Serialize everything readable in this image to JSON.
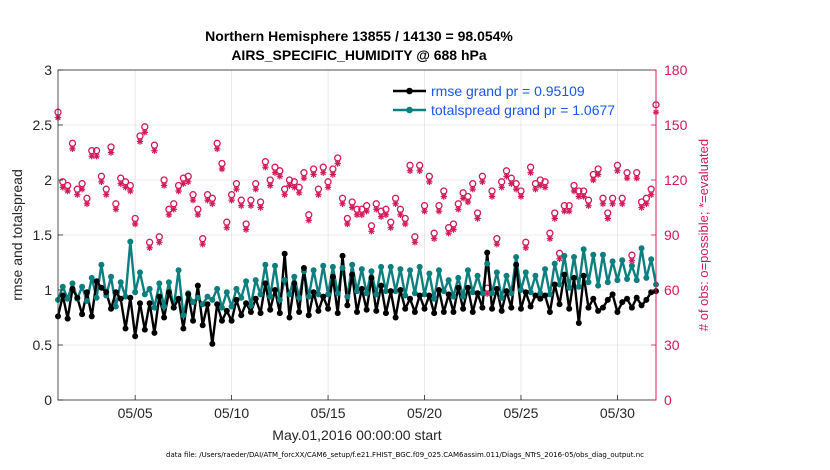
{
  "chart_data": {
    "type": "line",
    "title": "Northern Hemisphere 13855 / 14130 = 98.054%",
    "subtitle": "AIRS_SPECIFIC_HUMIDITY @ 688 hPa",
    "xlabel": "May.01,2016 00:00:00 start",
    "ylabel": "rmse and totalspread",
    "ylabel_right": "# of obs: o=possible; *=evaluated",
    "footer": "data file: /Users/raeder/DAI/ATM_forcXX/CAM6_setup/f.e21.FHIST_BGC.f09_025.CAM6assim.011/Diags_NTrS_2016-05/obs_diag_output.nc",
    "xlim": [
      1,
      32
    ],
    "ylim": [
      0,
      3
    ],
    "ylim_right": [
      0,
      180
    ],
    "x_ticks": [
      5,
      10,
      15,
      20,
      25,
      30
    ],
    "x_tick_labels": [
      "05/05",
      "05/10",
      "05/15",
      "05/20",
      "05/25",
      "05/30"
    ],
    "y_ticks": [
      0,
      0.5,
      1,
      1.5,
      2,
      2.5,
      3
    ],
    "y_tick_labels": [
      "0",
      "0.5",
      "1",
      "1.5",
      "2",
      "2.5",
      "3"
    ],
    "y2_ticks": [
      0,
      30,
      60,
      90,
      120,
      150,
      180
    ],
    "y2_tick_labels": [
      "0",
      "30",
      "60",
      "90",
      "120",
      "150",
      "180"
    ],
    "grid": true,
    "legend_position": "top-right",
    "colors": {
      "rmse": "#000000",
      "totalspread": "#0e7f7f",
      "obs": "#d11a59",
      "legend_text": "#1a56e8"
    },
    "x": [
      1.0,
      1.25,
      1.5,
      1.75,
      2.0,
      2.25,
      2.5,
      2.75,
      3.0,
      3.25,
      3.5,
      3.75,
      4.0,
      4.25,
      4.5,
      4.75,
      5.0,
      5.25,
      5.5,
      5.75,
      6.0,
      6.25,
      6.5,
      6.75,
      7.0,
      7.25,
      7.5,
      7.75,
      8.0,
      8.25,
      8.5,
      8.75,
      9.0,
      9.25,
      9.5,
      9.75,
      10.0,
      10.25,
      10.5,
      10.75,
      11.0,
      11.25,
      11.5,
      11.75,
      12.0,
      12.25,
      12.5,
      12.75,
      13.0,
      13.25,
      13.5,
      13.75,
      14.0,
      14.25,
      14.5,
      14.75,
      15.0,
      15.25,
      15.5,
      15.75,
      16.0,
      16.25,
      16.5,
      16.75,
      17.0,
      17.25,
      17.5,
      17.75,
      18.0,
      18.25,
      18.5,
      18.75,
      19.0,
      19.25,
      19.5,
      19.75,
      20.0,
      20.25,
      20.5,
      20.75,
      21.0,
      21.25,
      21.5,
      21.75,
      22.0,
      22.25,
      22.5,
      22.75,
      23.0,
      23.25,
      23.5,
      23.75,
      24.0,
      24.25,
      24.5,
      24.75,
      25.0,
      25.25,
      25.5,
      25.75,
      26.0,
      26.25,
      26.5,
      26.75,
      27.0,
      27.25,
      27.5,
      27.75,
      28.0,
      28.25,
      28.5,
      28.75,
      29.0,
      29.25,
      29.5,
      29.75,
      30.0,
      30.25,
      30.5,
      30.75,
      31.0,
      31.25,
      31.5,
      31.75,
      32.0
    ],
    "series": [
      {
        "name": "rmse grand pr = 0.95109",
        "axis": "left",
        "marker": "filled-circle",
        "values": [
          0.76,
          0.95,
          0.74,
          1.01,
          0.93,
          0.78,
          0.98,
          0.76,
          1.08,
          1.02,
          0.98,
          0.83,
          0.98,
          0.92,
          0.65,
          0.93,
          0.58,
          0.88,
          0.64,
          0.88,
          0.61,
          0.94,
          0.75,
          0.98,
          0.84,
          0.92,
          0.65,
          0.96,
          0.72,
          1.04,
          0.68,
          0.87,
          0.51,
          0.87,
          0.72,
          0.81,
          0.72,
          0.91,
          0.77,
          0.88,
          0.8,
          0.92,
          0.79,
          1.06,
          0.82,
          1.0,
          0.79,
          1.33,
          0.75,
          1.06,
          0.8,
          1.2,
          0.77,
          0.98,
          0.81,
          0.94,
          0.83,
          1.12,
          0.79,
          1.31,
          0.86,
          1.14,
          0.8,
          1.01,
          0.82,
          1.11,
          0.81,
          1.04,
          0.79,
          0.99,
          0.75,
          1.0,
          0.83,
          0.92,
          0.8,
          0.95,
          0.83,
          0.95,
          0.79,
          1.0,
          0.8,
          0.96,
          0.8,
          1.02,
          0.83,
          1.02,
          0.8,
          0.97,
          0.84,
          1.34,
          0.83,
          1.01,
          0.81,
          0.99,
          0.84,
          1.23,
          0.83,
          0.98,
          0.85,
          0.95,
          0.92,
          0.95,
          0.8,
          1.05,
          0.87,
          1.14,
          0.83,
          1.11,
          0.7,
          1.13,
          0.84,
          0.92,
          0.81,
          0.84,
          0.91,
          0.96,
          0.8,
          0.89,
          0.92,
          0.84,
          0.93,
          0.86,
          0.91,
          0.98,
          0.99
        ]
      },
      {
        "name": "totalspread grand pr = 1.0677",
        "axis": "left",
        "marker": "filled-circle",
        "values": [
          0.91,
          1.03,
          0.92,
          1.06,
          0.92,
          1.03,
          0.9,
          1.11,
          0.93,
          1.23,
          0.95,
          1.12,
          0.85,
          1.07,
          0.94,
          1.44,
          0.98,
          1.16,
          0.96,
          1.01,
          0.84,
          1.06,
          0.85,
          1.07,
          0.84,
          1.18,
          0.77,
          0.97,
          0.89,
          0.93,
          0.87,
          0.94,
          0.91,
          1.01,
          0.84,
          0.98,
          0.85,
          1.01,
          0.93,
          1.08,
          0.86,
          1.09,
          0.96,
          1.23,
          0.94,
          1.22,
          0.91,
          1.09,
          0.96,
          1.12,
          0.93,
          1.17,
          0.94,
          1.18,
          0.96,
          1.22,
          0.96,
          1.21,
          0.97,
          1.2,
          0.94,
          1.23,
          0.99,
          1.19,
          0.97,
          1.17,
          0.96,
          1.21,
          0.99,
          1.21,
          0.99,
          1.19,
          0.95,
          1.18,
          0.97,
          1.21,
          0.96,
          1.15,
          0.92,
          1.18,
          0.99,
          1.09,
          0.94,
          1.11,
          0.94,
          1.18,
          0.98,
          1.13,
          0.97,
          1.24,
          0.97,
          1.16,
          0.93,
          1.13,
          0.97,
          1.3,
          1.0,
          1.16,
          0.98,
          1.13,
          0.97,
          1.19,
          0.96,
          1.24,
          1.05,
          1.31,
          1.02,
          1.3,
          1.03,
          1.37,
          1.07,
          1.32,
          1.04,
          1.32,
          1.07,
          1.26,
          1.09,
          1.27,
          1.1,
          1.22,
          1.09,
          1.38,
          1.11,
          1.28,
          1.05
        ]
      },
      {
        "name": "possible",
        "axis": "right",
        "marker": "open-circle",
        "values": [
          157,
          119,
          117,
          140,
          115,
          118,
          110,
          136,
          136,
          122,
          115,
          138,
          107,
          121,
          119,
          117,
          99,
          144,
          149,
          86,
          139,
          89,
          120,
          104,
          107,
          117,
          121,
          122,
          112,
          104,
          88,
          112,
          110,
          140,
          129,
          97,
          112,
          118,
          109,
          96,
          109,
          118,
          108,
          130,
          120,
          127,
          125,
          115,
          120,
          119,
          116,
          124,
          101,
          126,
          115,
          127,
          119,
          126,
          132,
          110,
          99,
          108,
          104,
          104,
          106,
          95,
          107,
          103,
          104,
          97,
          110,
          104,
          99,
          128,
          89,
          128,
          106,
          122,
          91,
          106,
          114,
          94,
          96,
          107,
          113,
          111,
          118,
          102,
          122,
          61,
          114,
          88,
          119,
          125,
          121,
          118,
          114,
          86,
          127,
          118,
          120,
          119,
          91,
          102,
          80,
          106,
          106,
          117,
          114,
          114,
          109,
          123,
          126,
          110,
          102,
          110,
          128,
          110,
          124,
          79,
          124,
          108,
          110,
          115,
          161
        ]
      },
      {
        "name": "evaluated",
        "axis": "right",
        "marker": "asterisk",
        "values": [
          154,
          116,
          114,
          137,
          112,
          115,
          107,
          133,
          133,
          119,
          112,
          135,
          104,
          118,
          116,
          114,
          96,
          141,
          146,
          83,
          136,
          86,
          117,
          101,
          104,
          114,
          118,
          119,
          109,
          101,
          85,
          109,
          107,
          137,
          126,
          94,
          109,
          115,
          106,
          93,
          106,
          115,
          105,
          127,
          117,
          124,
          122,
          112,
          117,
          116,
          113,
          121,
          98,
          123,
          112,
          124,
          116,
          123,
          129,
          107,
          96,
          105,
          101,
          101,
          103,
          92,
          104,
          100,
          101,
          94,
          107,
          101,
          96,
          125,
          86,
          125,
          103,
          119,
          88,
          103,
          111,
          91,
          93,
          104,
          110,
          108,
          115,
          99,
          119,
          58,
          111,
          85,
          116,
          122,
          118,
          115,
          111,
          83,
          124,
          115,
          117,
          116,
          88,
          99,
          77,
          103,
          103,
          114,
          111,
          111,
          106,
          120,
          123,
          107,
          99,
          107,
          125,
          107,
          121,
          76,
          121,
          105,
          107,
          112,
          157
        ]
      }
    ]
  }
}
